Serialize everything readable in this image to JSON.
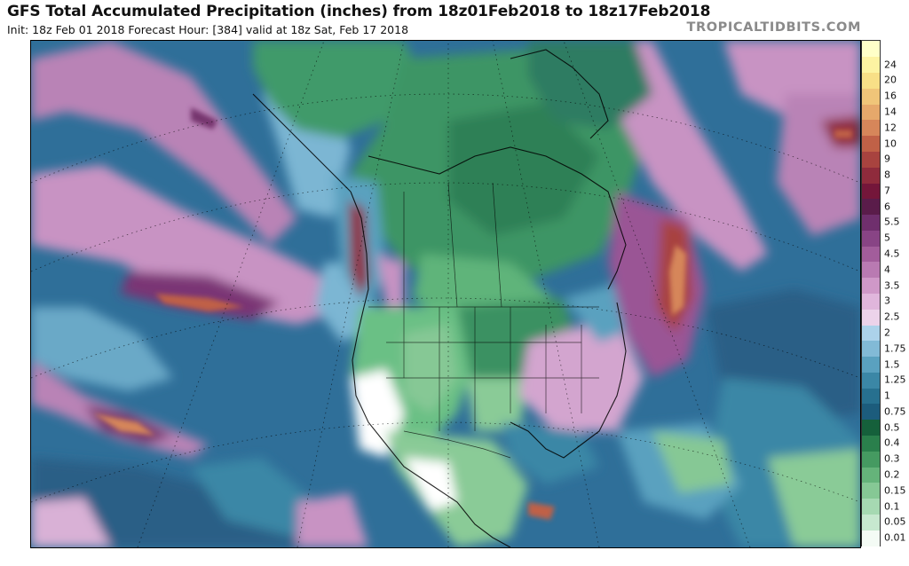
{
  "header": {
    "title": "GFS Total Accumulated Precipitation (inches) from 18z01Feb2018 to 18z17Feb2018",
    "subtitle": "Init: 18z Feb 01 2018   Forecast Hour: [384]   valid at 18z Sat, Feb 17 2018",
    "brand": "TROPICALTIDBITS.COM"
  },
  "map": {
    "region": "North America and adjacent Pacific / Atlantic",
    "variable": "accumulated precipitation",
    "units": "inches"
  },
  "legend": {
    "levels": [
      {
        "label": "0.01",
        "color": "#f4fbf5"
      },
      {
        "label": "0.05",
        "color": "#c7e8cf"
      },
      {
        "label": "0.1",
        "color": "#a6d9b2"
      },
      {
        "label": "0.15",
        "color": "#86c895"
      },
      {
        "label": "0.2",
        "color": "#65b37a"
      },
      {
        "label": "0.3",
        "color": "#459a61"
      },
      {
        "label": "0.4",
        "color": "#2a7f4c"
      },
      {
        "label": "0.5",
        "color": "#15603b"
      },
      {
        "label": "0.75",
        "color": "#1c5c7c"
      },
      {
        "label": "1",
        "color": "#27708f"
      },
      {
        "label": "1.25",
        "color": "#3b87a6"
      },
      {
        "label": "1.5",
        "color": "#5aa1bf"
      },
      {
        "label": "1.75",
        "color": "#82bad6"
      },
      {
        "label": "2",
        "color": "#acd2ea"
      },
      {
        "label": "2.5",
        "color": "#ecd3ea"
      },
      {
        "label": "3",
        "color": "#e0b6dc"
      },
      {
        "label": "3.5",
        "color": "#cf98c8"
      },
      {
        "label": "4",
        "color": "#b97ab2"
      },
      {
        "label": "4.5",
        "color": "#a25d9b"
      },
      {
        "label": "5",
        "color": "#884485"
      },
      {
        "label": "5.5",
        "color": "#6f2f6d"
      },
      {
        "label": "6",
        "color": "#5a1c4a"
      },
      {
        "label": "7",
        "color": "#74163a"
      },
      {
        "label": "8",
        "color": "#8f2b3c"
      },
      {
        "label": "9",
        "color": "#a8433f"
      },
      {
        "label": "10",
        "color": "#c06147"
      },
      {
        "label": "12",
        "color": "#d6865a"
      },
      {
        "label": "14",
        "color": "#e6a86b"
      },
      {
        "label": "16",
        "color": "#f0c579"
      },
      {
        "label": "20",
        "color": "#f8df87"
      },
      {
        "label": "24",
        "color": "#fdf3a2"
      }
    ],
    "top_color": "#ffffc8"
  }
}
